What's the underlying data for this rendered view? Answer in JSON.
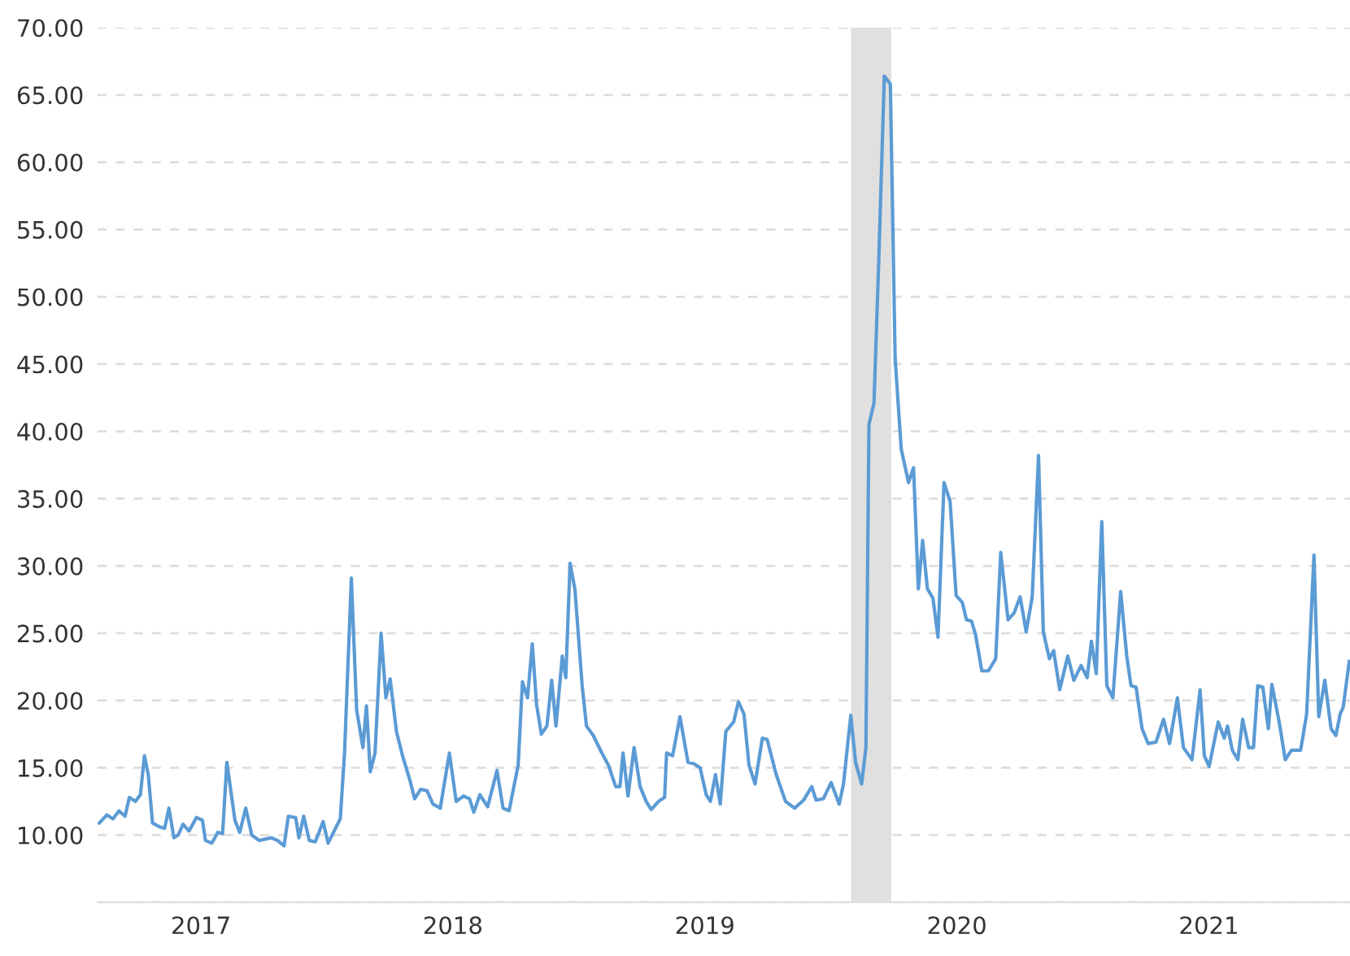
{
  "chart_data": {
    "type": "line",
    "x": [
      2017.097,
      2017.127,
      2017.151,
      2017.175,
      2017.199,
      2017.216,
      2017.24,
      2017.26,
      2017.276,
      2017.291,
      2017.308,
      2017.337,
      2017.356,
      2017.373,
      2017.393,
      2017.41,
      2017.429,
      2017.453,
      2017.482,
      2017.506,
      2017.518,
      2017.543,
      2017.567,
      2017.586,
      2017.603,
      2017.635,
      2017.654,
      2017.678,
      2017.702,
      2017.731,
      2017.78,
      2017.804,
      2017.83,
      2017.847,
      2017.876,
      2017.889,
      2017.908,
      2017.93,
      2017.954,
      2017.985,
      2018.005,
      2018.034,
      2018.053,
      2018.07,
      2018.097,
      2018.118,
      2018.143,
      2018.157,
      2018.172,
      2018.191,
      2018.215,
      2018.234,
      2018.251,
      2018.276,
      2018.3,
      2018.329,
      2018.348,
      2018.372,
      2018.397,
      2018.421,
      2018.45,
      2018.486,
      2018.513,
      2018.542,
      2018.566,
      2018.583,
      2018.607,
      2018.638,
      2018.675,
      2018.699,
      2018.723,
      2018.759,
      2018.776,
      2018.796,
      2018.815,
      2018.832,
      2018.851,
      2018.873,
      2018.892,
      2018.909,
      2018.934,
      2018.948,
      2018.965,
      2018.984,
      2019.013,
      2019.03,
      2019.057,
      2019.091,
      2019.117,
      2019.146,
      2019.163,
      2019.175,
      2019.195,
      2019.219,
      2019.243,
      2019.267,
      2019.287,
      2019.316,
      2019.34,
      2019.348,
      2019.372,
      2019.401,
      2019.433,
      2019.457,
      2019.481,
      2019.505,
      2019.522,
      2019.542,
      2019.561,
      2019.583,
      2019.614,
      2019.633,
      2019.655,
      2019.675,
      2019.699,
      2019.728,
      2019.747,
      2019.783,
      2019.82,
      2019.856,
      2019.892,
      2019.924,
      2019.941,
      2019.97,
      2020.001,
      2020.033,
      2020.05,
      2020.079,
      2020.098,
      2020.122,
      2020.139,
      2020.151,
      2020.171,
      2020.19,
      2020.212,
      2020.236,
      2020.255,
      2020.279,
      2020.308,
      2020.328,
      2020.347,
      2020.364,
      2020.383,
      2020.405,
      2020.425,
      2020.449,
      2020.473,
      2020.497,
      2020.521,
      2020.538,
      2020.558,
      2020.574,
      2020.599,
      2020.625,
      2020.654,
      2020.674,
      2020.703,
      2020.727,
      2020.751,
      2020.775,
      2020.799,
      2020.824,
      2020.843,
      2020.867,
      2020.884,
      2020.908,
      2020.94,
      2020.964,
      2020.993,
      2021.017,
      2021.034,
      2021.053,
      2021.075,
      2021.095,
      2021.119,
      2021.15,
      2021.174,
      2021.191,
      2021.211,
      2021.235,
      2021.259,
      2021.29,
      2021.32,
      2021.344,
      2021.375,
      2021.399,
      2021.433,
      2021.465,
      2021.482,
      2021.501,
      2021.537,
      2021.561,
      2021.574,
      2021.593,
      2021.615,
      2021.634,
      2021.658,
      2021.677,
      2021.694,
      2021.714,
      2021.736,
      2021.75,
      2021.779,
      2021.803,
      2021.828,
      2021.864,
      2021.888,
      2021.917,
      2021.936,
      2021.96,
      2021.985,
      2022.004,
      2022.021,
      2022.033,
      2022.057
    ],
    "series": [
      {
        "color": "#5b9bd5",
        "values": [
          10.9,
          11.5,
          11.2,
          11.8,
          11.4,
          12.8,
          12.5,
          13.0,
          15.9,
          14.5,
          10.9,
          10.6,
          10.5,
          12.0,
          9.8,
          10.0,
          10.8,
          10.3,
          11.3,
          11.1,
          9.6,
          9.4,
          10.2,
          10.1,
          15.4,
          11.1,
          10.2,
          12.0,
          10.0,
          9.6,
          9.8,
          9.6,
          9.2,
          11.4,
          11.3,
          9.8,
          11.4,
          9.6,
          9.5,
          11.0,
          9.4,
          10.5,
          11.2,
          16.1,
          29.1,
          19.3,
          16.5,
          19.6,
          14.7,
          16.1,
          25.0,
          20.2,
          21.6,
          17.7,
          15.9,
          14.1,
          12.7,
          13.4,
          13.3,
          12.3,
          12.0,
          16.1,
          12.5,
          12.9,
          12.7,
          11.7,
          13.0,
          12.1,
          14.8,
          12.0,
          11.8,
          15.2,
          21.4,
          20.2,
          24.2,
          19.7,
          17.5,
          18.1,
          21.5,
          18.1,
          23.3,
          21.7,
          30.2,
          28.3,
          21.1,
          18.1,
          17.4,
          16.1,
          15.2,
          13.6,
          13.6,
          16.1,
          12.9,
          16.5,
          13.6,
          12.5,
          11.9,
          12.5,
          12.8,
          16.1,
          15.9,
          18.8,
          15.4,
          15.3,
          15.0,
          13.0,
          12.5,
          14.5,
          12.3,
          17.7,
          18.4,
          19.9,
          19.0,
          15.2,
          13.8,
          17.2,
          17.1,
          14.5,
          12.5,
          12.0,
          12.6,
          13.6,
          12.6,
          12.7,
          13.9,
          12.3,
          13.8,
          18.9,
          15.4,
          13.8,
          16.5,
          40.5,
          42.1,
          52.7,
          66.4,
          65.8,
          45.4,
          38.7,
          36.2,
          37.3,
          28.3,
          31.9,
          28.3,
          27.6,
          24.7,
          36.2,
          34.8,
          27.8,
          27.3,
          26.0,
          25.9,
          24.9,
          22.2,
          22.2,
          23.1,
          31.0,
          26.0,
          26.5,
          27.7,
          25.1,
          27.7,
          38.2,
          25.1,
          23.1,
          23.7,
          20.8,
          23.3,
          21.5,
          22.6,
          21.7,
          24.4,
          22.0,
          33.3,
          21.1,
          20.2,
          28.1,
          23.3,
          21.1,
          21.0,
          17.9,
          16.8,
          16.9,
          18.6,
          16.8,
          20.2,
          16.5,
          15.6,
          20.8,
          15.9,
          15.1,
          18.4,
          17.2,
          18.1,
          16.3,
          15.6,
          18.6,
          16.5,
          16.5,
          21.1,
          21.0,
          17.9,
          21.2,
          18.4,
          15.6,
          16.3,
          16.3,
          19.0,
          30.8,
          18.8,
          21.5,
          17.9,
          17.4,
          19.0,
          19.5,
          22.9
        ]
      }
    ],
    "xlim": [
      2017.09,
      2022.06
    ],
    "xticks": [
      {
        "value": 2017.5,
        "label": "2017"
      },
      {
        "value": 2018.5,
        "label": "2018"
      },
      {
        "value": 2019.5,
        "label": "2019"
      },
      {
        "value": 2020.5,
        "label": "2020"
      },
      {
        "value": 2021.5,
        "label": "2021"
      }
    ],
    "ylim": [
      5,
      70
    ],
    "yticks": [
      {
        "value": 5,
        "label": null
      },
      {
        "value": 10,
        "label": "10.00"
      },
      {
        "value": 15,
        "label": "15.00"
      },
      {
        "value": 20,
        "label": "20.00"
      },
      {
        "value": 25,
        "label": "25.00"
      },
      {
        "value": 30,
        "label": "30.00"
      },
      {
        "value": 35,
        "label": "35.00"
      },
      {
        "value": 40,
        "label": "40.00"
      },
      {
        "value": 45,
        "label": "45.00"
      },
      {
        "value": 50,
        "label": "50.00"
      },
      {
        "value": 55,
        "label": "55.00"
      },
      {
        "value": 60,
        "label": "60.00"
      },
      {
        "value": 65,
        "label": "65.00"
      },
      {
        "value": 70,
        "label": "70.00"
      }
    ],
    "bands": [
      {
        "axis": "x",
        "from": 2020.08,
        "to": 2020.24,
        "color": "#e0e0e0"
      }
    ],
    "grid": "y",
    "legend": false,
    "marker": "none",
    "line_style": "solid"
  }
}
